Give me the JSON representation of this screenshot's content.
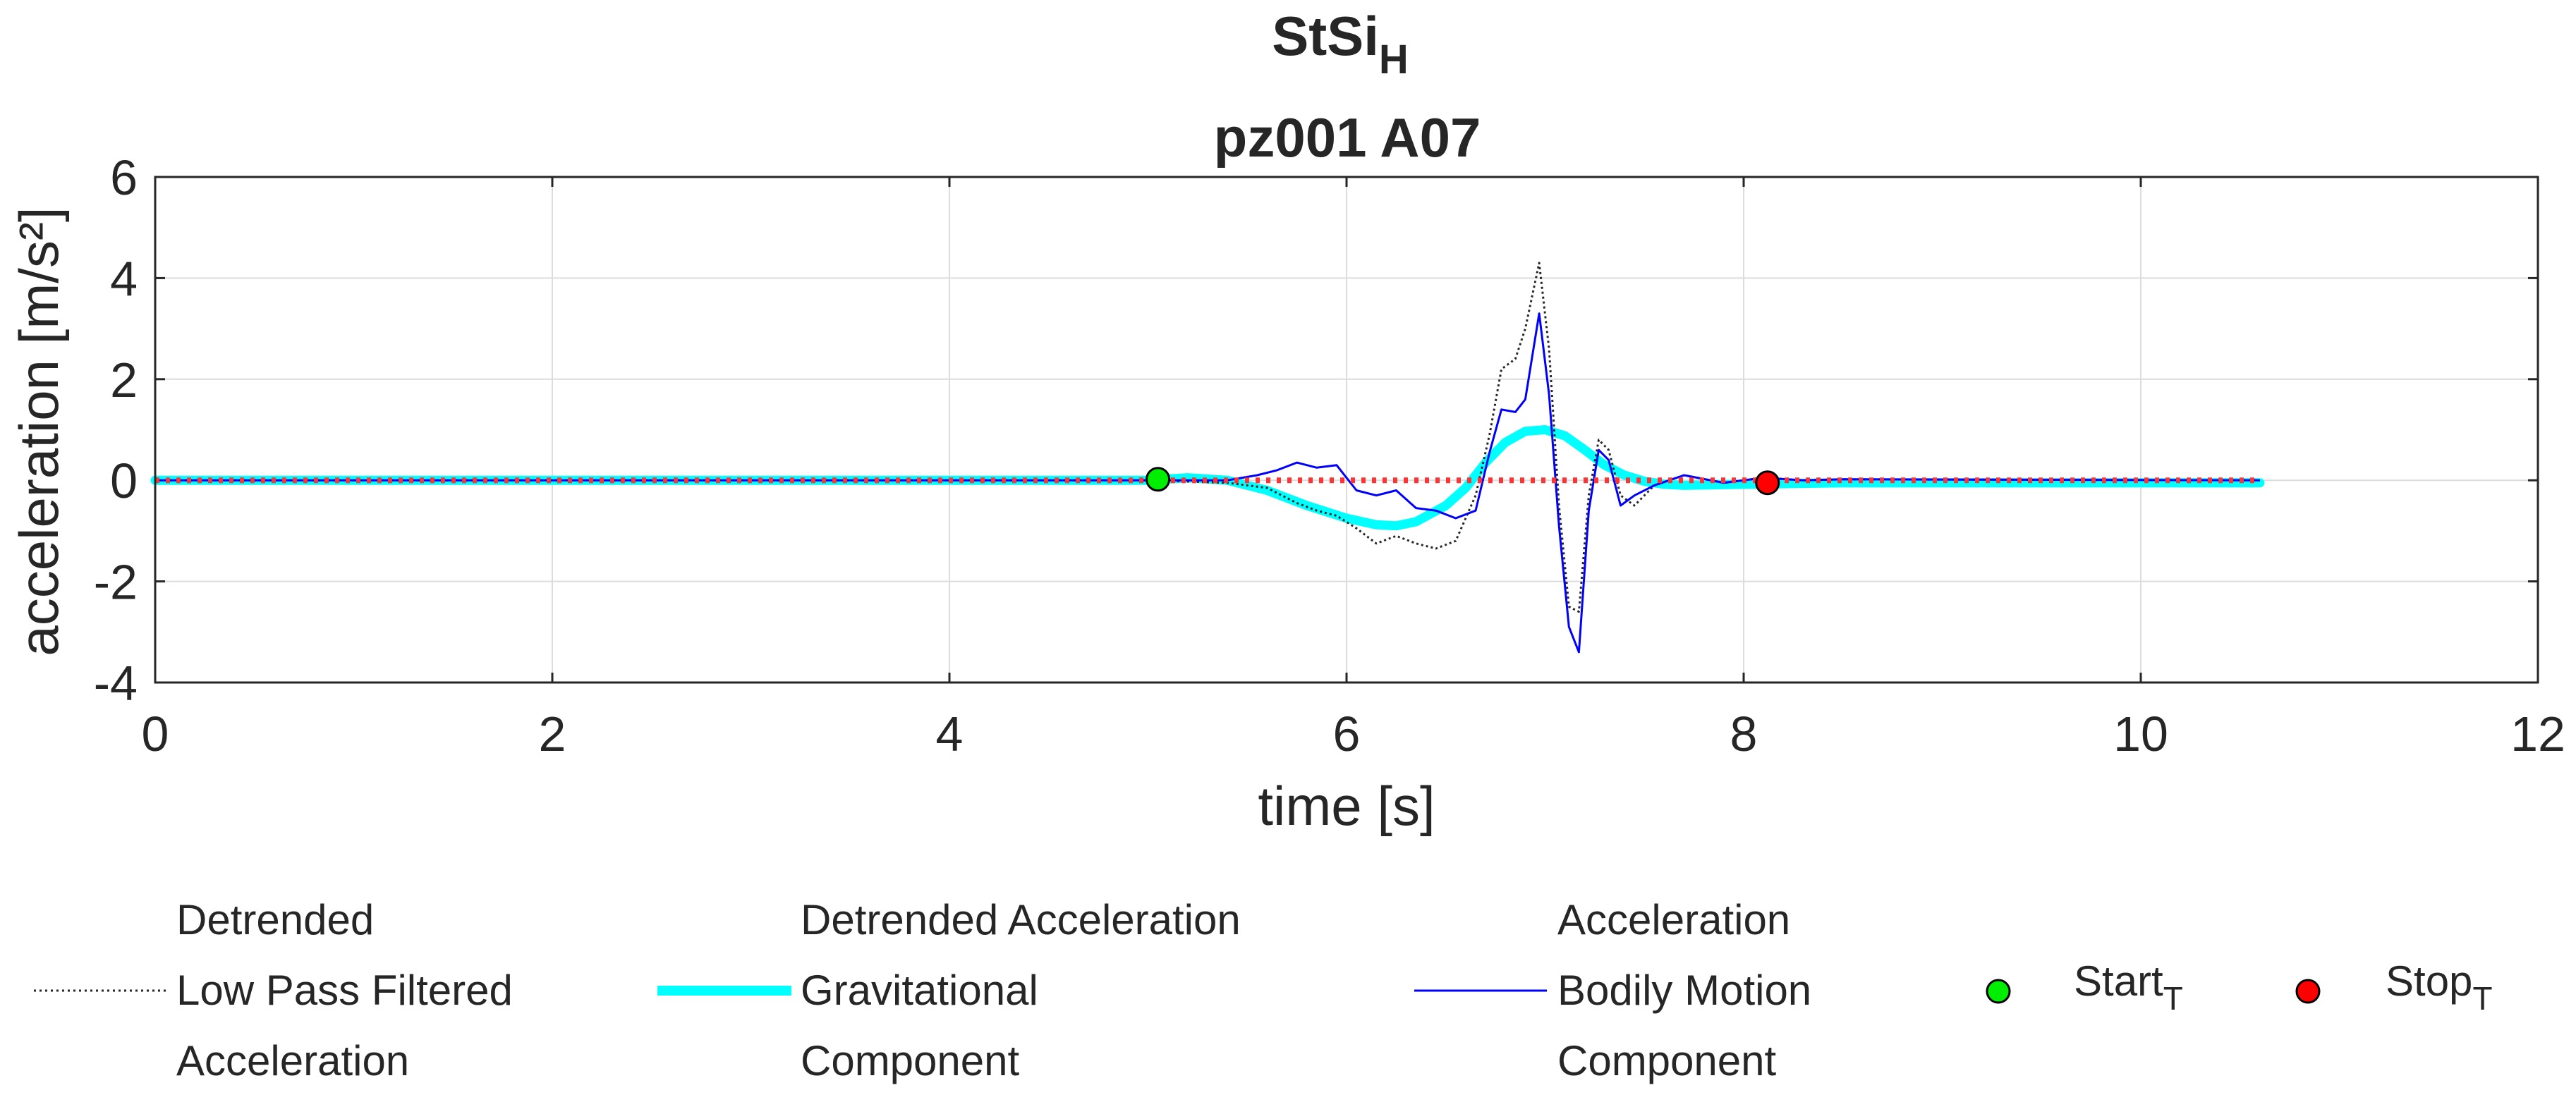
{
  "chart_data": {
    "type": "line",
    "title": {
      "main": "StSi",
      "sub": "H",
      "line2": "pz001 A07"
    },
    "xlabel": "time [s]",
    "ylabel": "acceleration [m/s²]",
    "xlim": [
      0,
      12
    ],
    "ylim": [
      -4,
      6
    ],
    "xticks": [
      0,
      2,
      4,
      6,
      8,
      10,
      12
    ],
    "yticks": [
      -4,
      -2,
      0,
      2,
      4,
      6
    ],
    "grid": true,
    "legend_position": "bottom",
    "series": [
      {
        "name": "Detrended Low Pass Filtered Acceleration",
        "legend_lines": [
          "Detrended",
          "Low Pass Filtered",
          "Acceleration"
        ],
        "color": "#262626",
        "style": "dotted",
        "x": [
          0,
          5.0,
          5.4,
          5.6,
          5.75,
          5.85,
          5.95,
          6.05,
          6.15,
          6.25,
          6.35,
          6.45,
          6.55,
          6.65,
          6.72,
          6.78,
          6.85,
          6.9,
          6.97,
          7.02,
          7.07,
          7.12,
          7.17,
          7.22,
          7.27,
          7.32,
          7.38,
          7.45,
          7.55,
          7.7,
          7.9,
          8.1,
          8.3,
          8.5,
          10.6
        ],
        "y": [
          0.0,
          0.0,
          -0.05,
          -0.15,
          -0.45,
          -0.6,
          -0.7,
          -0.95,
          -1.25,
          -1.1,
          -1.25,
          -1.35,
          -1.2,
          -0.3,
          0.9,
          2.2,
          2.4,
          3.0,
          4.3,
          2.6,
          -0.5,
          -2.5,
          -2.6,
          -0.3,
          0.8,
          0.6,
          -0.3,
          -0.5,
          -0.1,
          0.1,
          -0.05,
          0.05,
          0.0,
          0.02,
          0.0
        ]
      },
      {
        "name": "Detrended Acceleration Gravitational Component",
        "legend_lines": [
          "Detrended Acceleration",
          "Gravitational",
          "Component"
        ],
        "color": "#00FFFF",
        "style": "thick",
        "x": [
          0,
          5.0,
          5.2,
          5.4,
          5.6,
          5.8,
          6.0,
          6.15,
          6.25,
          6.35,
          6.5,
          6.6,
          6.7,
          6.8,
          6.9,
          7.0,
          7.1,
          7.2,
          7.3,
          7.4,
          7.5,
          7.6,
          7.7,
          8.0,
          8.5,
          10.6
        ],
        "y": [
          0.0,
          0.0,
          0.05,
          0.0,
          -0.2,
          -0.5,
          -0.75,
          -0.88,
          -0.9,
          -0.82,
          -0.5,
          -0.15,
          0.35,
          0.75,
          0.97,
          1.0,
          0.88,
          0.6,
          0.3,
          0.1,
          -0.02,
          -0.08,
          -0.1,
          -0.08,
          -0.05,
          -0.05
        ]
      },
      {
        "name": "Acceleration Bodily Motion Component",
        "legend_lines": [
          "Acceleration",
          "Bodily Motion",
          "Component"
        ],
        "color": "#0000FF",
        "style": "solid",
        "x": [
          0,
          5.0,
          5.4,
          5.55,
          5.65,
          5.75,
          5.85,
          5.95,
          6.05,
          6.15,
          6.25,
          6.35,
          6.45,
          6.55,
          6.65,
          6.72,
          6.78,
          6.85,
          6.9,
          6.97,
          7.02,
          7.07,
          7.12,
          7.17,
          7.22,
          7.27,
          7.32,
          7.38,
          7.45,
          7.55,
          7.7,
          7.9,
          8.1,
          8.3,
          8.5,
          10.6
        ],
        "y": [
          0.0,
          0.0,
          0.0,
          0.1,
          0.2,
          0.35,
          0.25,
          0.3,
          -0.2,
          -0.3,
          -0.2,
          -0.55,
          -0.6,
          -0.75,
          -0.6,
          0.55,
          1.4,
          1.35,
          1.6,
          3.3,
          1.7,
          -0.9,
          -2.9,
          -3.4,
          -0.6,
          0.6,
          0.4,
          -0.5,
          -0.3,
          -0.1,
          0.1,
          -0.05,
          0.05,
          0.0,
          0.02,
          0.0
        ]
      },
      {
        "name": "Zero reference",
        "color": "#FF3333",
        "style": "red-dotted",
        "x": [
          0,
          10.6
        ],
        "y": [
          0,
          0
        ]
      }
    ],
    "markers": [
      {
        "name": "Start",
        "sub": "T",
        "x": 5.05,
        "y": 0.02,
        "color": "#00EE00"
      },
      {
        "name": "Stop",
        "sub": "T",
        "x": 8.12,
        "y": -0.05,
        "color": "#FF0000"
      }
    ]
  }
}
